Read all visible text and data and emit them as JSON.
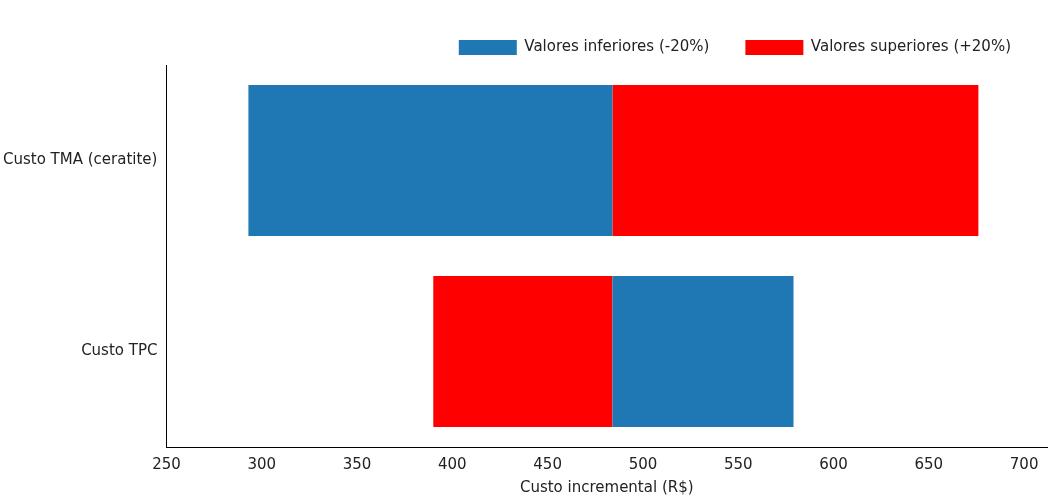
{
  "chart_data": {
    "type": "bar",
    "orientation": "horizontal",
    "xlabel": "Custo incremental (R$)",
    "categories": [
      "Custo TMA (ceratite)",
      "Custo TPC"
    ],
    "series": [
      {
        "name": "Valores inferiores (-20%)",
        "color": "#1f77b4",
        "values": [
          191,
          95
        ],
        "base": [
          293,
          484
        ]
      },
      {
        "name": "Valores superiores (+20%)",
        "color": "#ff0000",
        "values": [
          192,
          94
        ],
        "base": [
          484,
          390
        ]
      }
    ],
    "xlim": [
      250,
      712
    ],
    "xticks": [
      250,
      300,
      350,
      400,
      450,
      500,
      550,
      600,
      650,
      700
    ],
    "grid": false,
    "legend": "top right"
  }
}
